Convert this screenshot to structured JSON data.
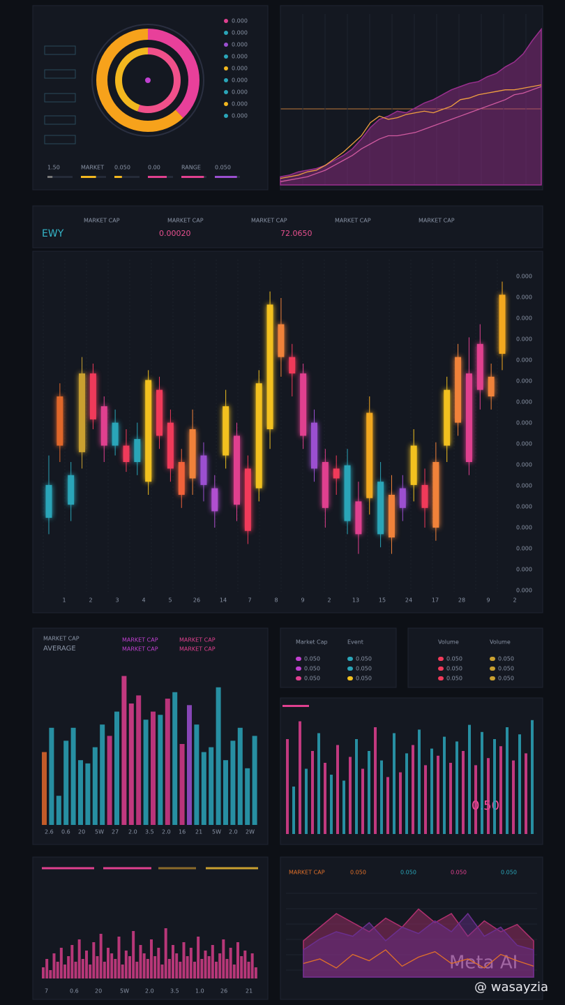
{
  "header": {
    "symbol": "EWY",
    "labels": [
      "MARKET CAP",
      "MARKET CAP",
      "MARKET CAP",
      "MARKET CAP",
      "MARKET CAP"
    ],
    "price": "0.00020",
    "change": "72.0650"
  },
  "donut": {
    "rings": [
      {
        "values": [
          38,
          62
        ],
        "colors": [
          "#e8409a",
          "#f7a21b"
        ]
      },
      {
        "values": [
          55,
          45
        ],
        "colors": [
          "#f0508a",
          "#f2b71f"
        ]
      }
    ],
    "legend": {
      "labels": [
        "0.000",
        "0.000",
        "0.000",
        "0.000",
        "0.000",
        "0.000",
        "0.000",
        "0.000",
        "0.000"
      ],
      "colors": [
        "#e0408f",
        "#2aa5b8",
        "#9b4fd0",
        "#2aa5b8",
        "#f2b71f",
        "#2aa5b8",
        "#2aa5b8",
        "#f2b71f",
        "#2aa5b8"
      ]
    },
    "bottom_labels": [
      "1.50",
      "MARKET",
      "0.050",
      "0.00",
      "RANGE",
      "0.050"
    ],
    "progress": {
      "values": [
        20,
        60,
        30,
        75,
        90,
        88
      ],
      "colors": [
        "#777777",
        "#f2b71f",
        "#f2b71f",
        "#e0408f",
        "#e0408f",
        "#9b4fd0"
      ]
    }
  },
  "top_area": {
    "series": [
      {
        "color": "#9b2f8f",
        "values": [
          5,
          6,
          8,
          9,
          10,
          12,
          15,
          18,
          22,
          28,
          35,
          40,
          42,
          45,
          44,
          47,
          50,
          52,
          55,
          58,
          60,
          62,
          63,
          66,
          68,
          72,
          75,
          80,
          88,
          95
        ]
      },
      {
        "color": "#f0a040",
        "values": [
          4,
          5,
          6,
          8,
          9,
          12,
          16,
          20,
          25,
          30,
          38,
          42,
          40,
          41,
          43,
          44,
          45,
          44,
          46,
          48,
          52,
          53,
          55,
          56,
          57,
          58,
          58,
          59,
          60,
          61
        ]
      },
      {
        "color": "#d05aa0",
        "values": [
          2,
          3,
          4,
          5,
          7,
          9,
          12,
          15,
          18,
          22,
          25,
          28,
          30,
          30,
          31,
          32,
          34,
          36,
          38,
          40,
          42,
          44,
          46,
          48,
          50,
          52,
          55,
          56,
          58,
          60
        ]
      }
    ]
  },
  "candles": {
    "values": [
      [
        23,
        33,
        18,
        42
      ],
      [
        45,
        60,
        40,
        64
      ],
      [
        27,
        36,
        22,
        40
      ],
      [
        43,
        67,
        38,
        72
      ],
      [
        53,
        67,
        50,
        70
      ],
      [
        45,
        57,
        40,
        60
      ],
      [
        45,
        52,
        42,
        56
      ],
      [
        40,
        45,
        37,
        50
      ],
      [
        40,
        47,
        36,
        52
      ],
      [
        34,
        65,
        30,
        68
      ],
      [
        48,
        62,
        44,
        66
      ],
      [
        38,
        52,
        34,
        56
      ],
      [
        30,
        40,
        26,
        44
      ],
      [
        35,
        50,
        30,
        56
      ],
      [
        33,
        42,
        28,
        46
      ],
      [
        25,
        32,
        20,
        36
      ],
      [
        42,
        57,
        38,
        62
      ],
      [
        27,
        48,
        22,
        52
      ],
      [
        19,
        38,
        15,
        42
      ],
      [
        32,
        64,
        28,
        68
      ],
      [
        50,
        88,
        44,
        92
      ],
      [
        72,
        82,
        66,
        90
      ],
      [
        67,
        72,
        60,
        76
      ],
      [
        48,
        67,
        44,
        70
      ],
      [
        38,
        52,
        34,
        56
      ],
      [
        26,
        40,
        20,
        44
      ],
      [
        35,
        38,
        30,
        42
      ],
      [
        22,
        39,
        18,
        44
      ],
      [
        18,
        28,
        12,
        34
      ],
      [
        29,
        55,
        24,
        60
      ],
      [
        18,
        34,
        14,
        40
      ],
      [
        17,
        30,
        12,
        36
      ],
      [
        26,
        32,
        22,
        36
      ],
      [
        33,
        45,
        28,
        50
      ],
      [
        26,
        33,
        20,
        38
      ],
      [
        20,
        40,
        16,
        46
      ],
      [
        45,
        62,
        40,
        66
      ],
      [
        52,
        72,
        48,
        76
      ],
      [
        40,
        67,
        36,
        78
      ],
      [
        62,
        76,
        56,
        82
      ],
      [
        60,
        66,
        56,
        70
      ],
      [
        73,
        91,
        68,
        95
      ]
    ],
    "colors": [
      "#2aa5b8",
      "#e0672a",
      "#2aa5b8",
      "#c9a030",
      "#f03a5a",
      "#e0408f",
      "#2aa5b8",
      "#f03a5a",
      "#2aa5b8",
      "#f2c11f",
      "#f03a5a",
      "#f03a5a",
      "#f0623a",
      "#f0823a",
      "#9b4fd0",
      "#b04fd0",
      "#f2c11f",
      "#e0408f",
      "#f03a5a",
      "#f2c11f",
      "#f2c11f",
      "#f0823a",
      "#f03a5a",
      "#e0408f",
      "#9b4fd0",
      "#e0408f",
      "#f03a5a",
      "#2aa5b8",
      "#e0408f",
      "#f2a81f",
      "#2aa5b8",
      "#f0823a",
      "#9b4fd0",
      "#f2c11f",
      "#f03a5a",
      "#f0823a",
      "#f2c11f",
      "#f0823a",
      "#e0408f",
      "#e0408f",
      "#f0823a",
      "#f2a81f"
    ],
    "x_labels": [
      "1",
      "2",
      "3",
      "4",
      "5",
      "26",
      "14",
      "7",
      "8",
      "9",
      "2",
      "13",
      "15",
      "24",
      "17",
      "28",
      "9",
      "2"
    ],
    "y_labels": [
      "0.000",
      "0.000",
      "0.000",
      "0.000",
      "0.000",
      "0.000",
      "0.000",
      "0.000",
      "0.000",
      "0.000",
      "0.000",
      "0.000",
      "0.000",
      "0.000",
      "0.000",
      "0.000"
    ]
  },
  "bars_left": {
    "title": "MARKET CAP",
    "subtitle": "AVERAGE",
    "legend": [
      "MARKET CAP",
      "MARKET CAP",
      "MARKET CAP",
      "MARKET CAP"
    ],
    "values": [
      45,
      60,
      18,
      52,
      60,
      40,
      38,
      48,
      62,
      55,
      70,
      92,
      75,
      80,
      65,
      70,
      68,
      78,
      82,
      50,
      74,
      62,
      45,
      48,
      85,
      40,
      52,
      60,
      35,
      55
    ],
    "colors": [
      "#e0672a",
      "#2aa5b8",
      "#2aa5b8",
      "#2aa5b8",
      "#2aa5b8",
      "#2aa5b8",
      "#2aa5b8",
      "#2aa5b8",
      "#2aa5b8",
      "#d63a8a",
      "#2aa5b8",
      "#e0408f",
      "#e0408f",
      "#d63a8a",
      "#2aa5b8",
      "#d63a8a",
      "#2aa5b8",
      "#d63a8a",
      "#2aa5b8",
      "#d63a8a",
      "#9b4fd0",
      "#2aa5b8",
      "#2aa5b8",
      "#2aa5b8",
      "#2aa5b8",
      "#2aa5b8",
      "#2aa5b8",
      "#2aa5b8",
      "#2aa5b8",
      "#2aa5b8"
    ],
    "x_labels": [
      "2.6",
      "0.6",
      "20",
      "5W",
      "27",
      "2.0",
      "3.5",
      "2.0",
      "16",
      "21",
      "5W",
      "2.0",
      "2W"
    ]
  },
  "legend_a": {
    "headers": [
      "Market Cap",
      "Event"
    ],
    "labels": [
      "0.050",
      "0.050",
      "0.050",
      "0.050",
      "0.050",
      "0.050"
    ],
    "colors": [
      "#c040d0",
      "#2aa5b8",
      "#c040d0",
      "#2aa5b8",
      "#e0408f",
      "#f2c11f"
    ]
  },
  "legend_b": {
    "headers": [
      "Volume",
      "Volume"
    ],
    "labels": [
      "0.050",
      "0.050",
      "0.050",
      "0.050",
      "0.050",
      "0.050"
    ],
    "colors": [
      "#f03a5a",
      "#c9a030",
      "#f03a5a",
      "#c9a030",
      "#f03a5a",
      "#c9a030"
    ]
  },
  "bars_right": {
    "values": [
      80,
      40,
      95,
      55,
      70,
      85,
      60,
      50,
      75,
      45,
      65,
      80,
      55,
      70,
      90,
      62,
      48,
      85,
      52,
      68,
      75,
      88,
      58,
      72,
      66,
      82,
      60,
      78,
      70,
      92,
      58,
      86,
      64,
      80,
      74,
      90,
      62,
      84,
      68,
      96
    ],
    "colors": [
      "#e0408f",
      "#2aa5b8",
      "#e0408f",
      "#2aa5b8",
      "#e0408f",
      "#2aa5b8",
      "#e0408f",
      "#2aa5b8",
      "#e0408f",
      "#2aa5b8",
      "#e0408f",
      "#2aa5b8",
      "#e0408f",
      "#2aa5b8",
      "#e0408f",
      "#2aa5b8",
      "#e0408f",
      "#2aa5b8",
      "#e0408f",
      "#2aa5b8",
      "#e0408f",
      "#2aa5b8",
      "#e0408f",
      "#2aa5b8",
      "#e0408f",
      "#2aa5b8",
      "#e0408f",
      "#2aa5b8",
      "#e0408f",
      "#2aa5b8",
      "#e0408f",
      "#2aa5b8",
      "#e0408f",
      "#2aa5b8",
      "#e0408f",
      "#2aa5b8",
      "#e0408f",
      "#2aa5b8",
      "#e0408f",
      "#2aa5b8"
    ],
    "badge": "0.50"
  },
  "wave": {
    "color": "#e0408f",
    "values": [
      20,
      35,
      15,
      45,
      30,
      55,
      25,
      40,
      60,
      30,
      70,
      35,
      50,
      25,
      65,
      40,
      80,
      30,
      55,
      45,
      35,
      75,
      25,
      50,
      40,
      85,
      30,
      60,
      45,
      35,
      70,
      40,
      55,
      25,
      90,
      35,
      60,
      45,
      30,
      65,
      40,
      55,
      30,
      75,
      35,
      50,
      40,
      60,
      30,
      45,
      70,
      35,
      55,
      25,
      65,
      40,
      50,
      30,
      45,
      20
    ],
    "x_labels": [
      "7",
      "0.6",
      "20",
      "5W",
      "2.0",
      "3.5",
      "1.0",
      "26",
      "21"
    ]
  },
  "bottom_area": {
    "title": "MARKET CAP",
    "tags": [
      "0.050",
      "0.050",
      "0.050",
      "0.050"
    ],
    "series": [
      {
        "color": "#b0306f",
        "values": [
          40,
          55,
          70,
          60,
          50,
          65,
          55,
          75,
          60,
          70,
          45,
          62,
          50,
          58,
          40
        ]
      },
      {
        "color": "#6a2f8f",
        "values": [
          30,
          42,
          50,
          45,
          60,
          40,
          55,
          48,
          62,
          50,
          70,
          45,
          55,
          35,
          30
        ]
      },
      {
        "color": "#e0702a",
        "values": [
          15,
          20,
          10,
          25,
          18,
          30,
          12,
          22,
          28,
          15,
          20,
          10,
          25,
          18,
          12
        ]
      }
    ]
  },
  "watermark": {
    "brand": "Meta AI",
    "handle": "@ wasayzia"
  }
}
